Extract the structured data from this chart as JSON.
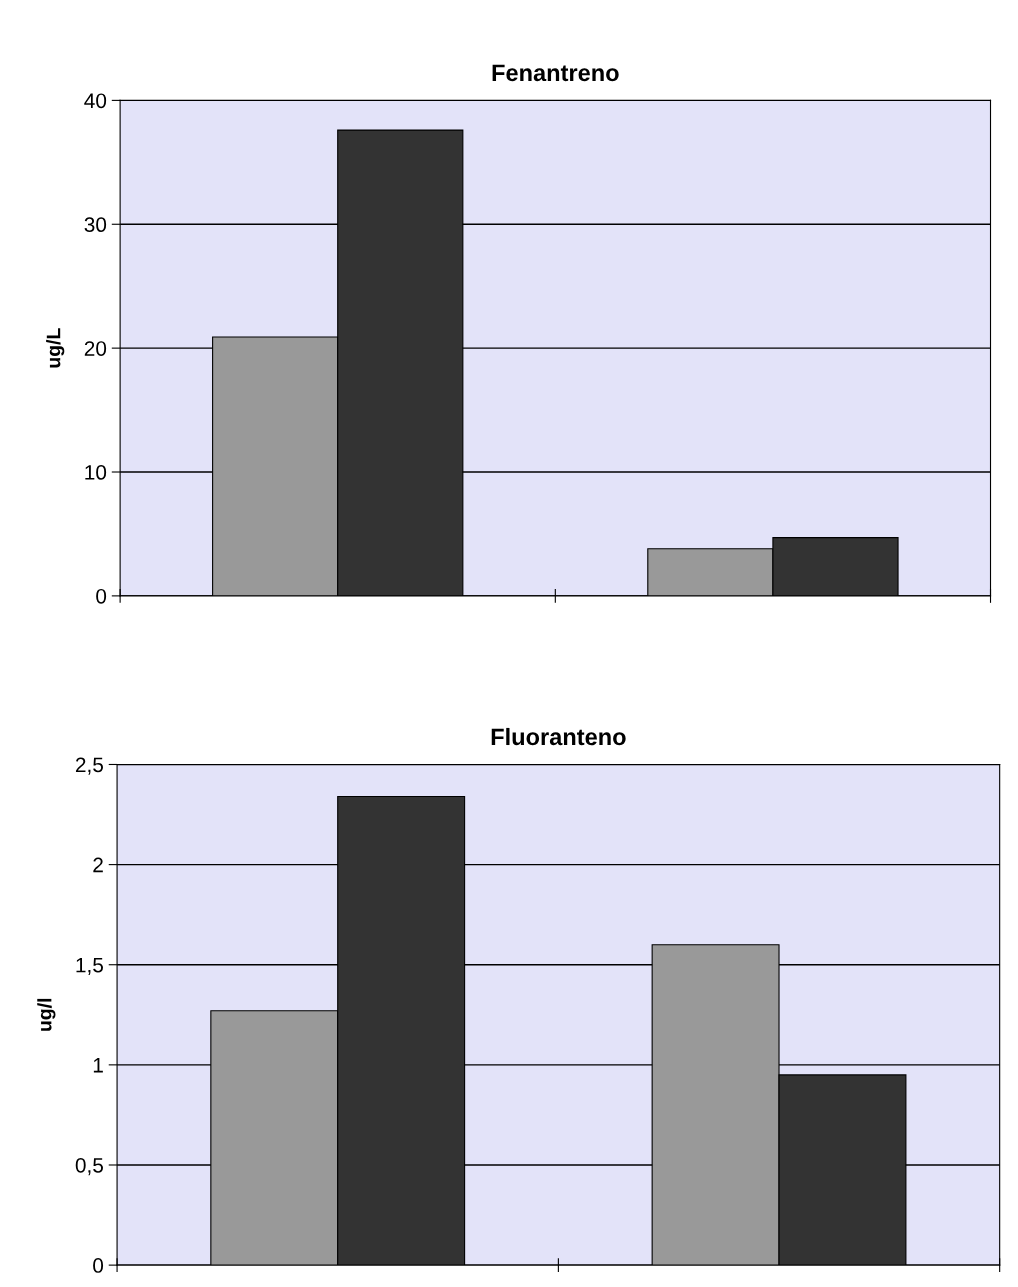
{
  "chart_data": [
    {
      "type": "bar",
      "title": "Fenantreno",
      "ylabel": "ug/L",
      "categories": [
        null,
        null
      ],
      "series": [
        {
          "color": "#999999",
          "values": [
            20.9,
            3.8
          ]
        },
        {
          "color": "#333333",
          "values": [
            37.6,
            4.7
          ]
        }
      ],
      "ylim": [
        0,
        40
      ],
      "yticks": [
        0,
        10,
        20,
        30,
        40
      ],
      "grid": "y"
    },
    {
      "type": "bar",
      "title": "Fluoranteno",
      "ylabel": "ug/l",
      "categories": [
        null,
        null
      ],
      "series": [
        {
          "color": "#999999",
          "values": [
            1.27,
            1.6
          ]
        },
        {
          "color": "#333333",
          "values": [
            2.34,
            0.95
          ]
        }
      ],
      "ylim": [
        0,
        2.5
      ],
      "yticks": [
        0,
        {
          "value": 0.5,
          "label": "0,5"
        },
        1,
        {
          "value": 1.5,
          "label": "1,5"
        },
        2,
        {
          "value": 2.5,
          "label": "2,5"
        }
      ],
      "grid": "y"
    }
  ]
}
